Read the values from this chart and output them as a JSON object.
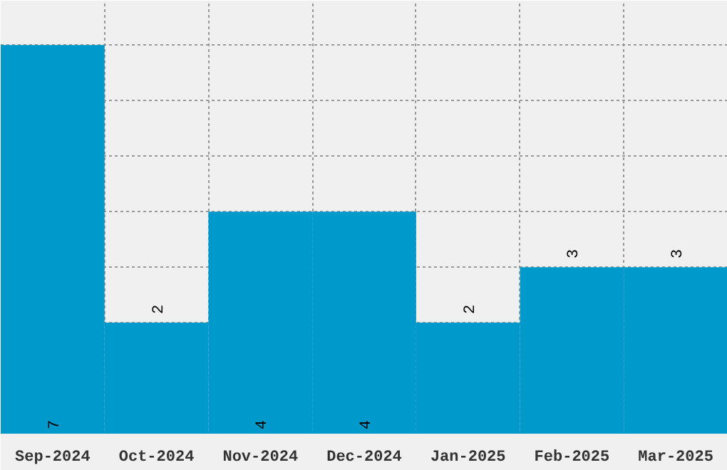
{
  "chart_data": {
    "type": "bar",
    "categories": [
      "Sep-2024",
      "Oct-2024",
      "Nov-2024",
      "Dec-2024",
      "Jan-2025",
      "Feb-2025",
      "Mar-2025"
    ],
    "values": [
      7,
      2,
      4,
      4,
      2,
      3,
      3
    ],
    "color": "#0099cc",
    "data_labels": true,
    "ylim": [
      0,
      7.8
    ],
    "tick_labels": "x",
    "grid": true
  }
}
